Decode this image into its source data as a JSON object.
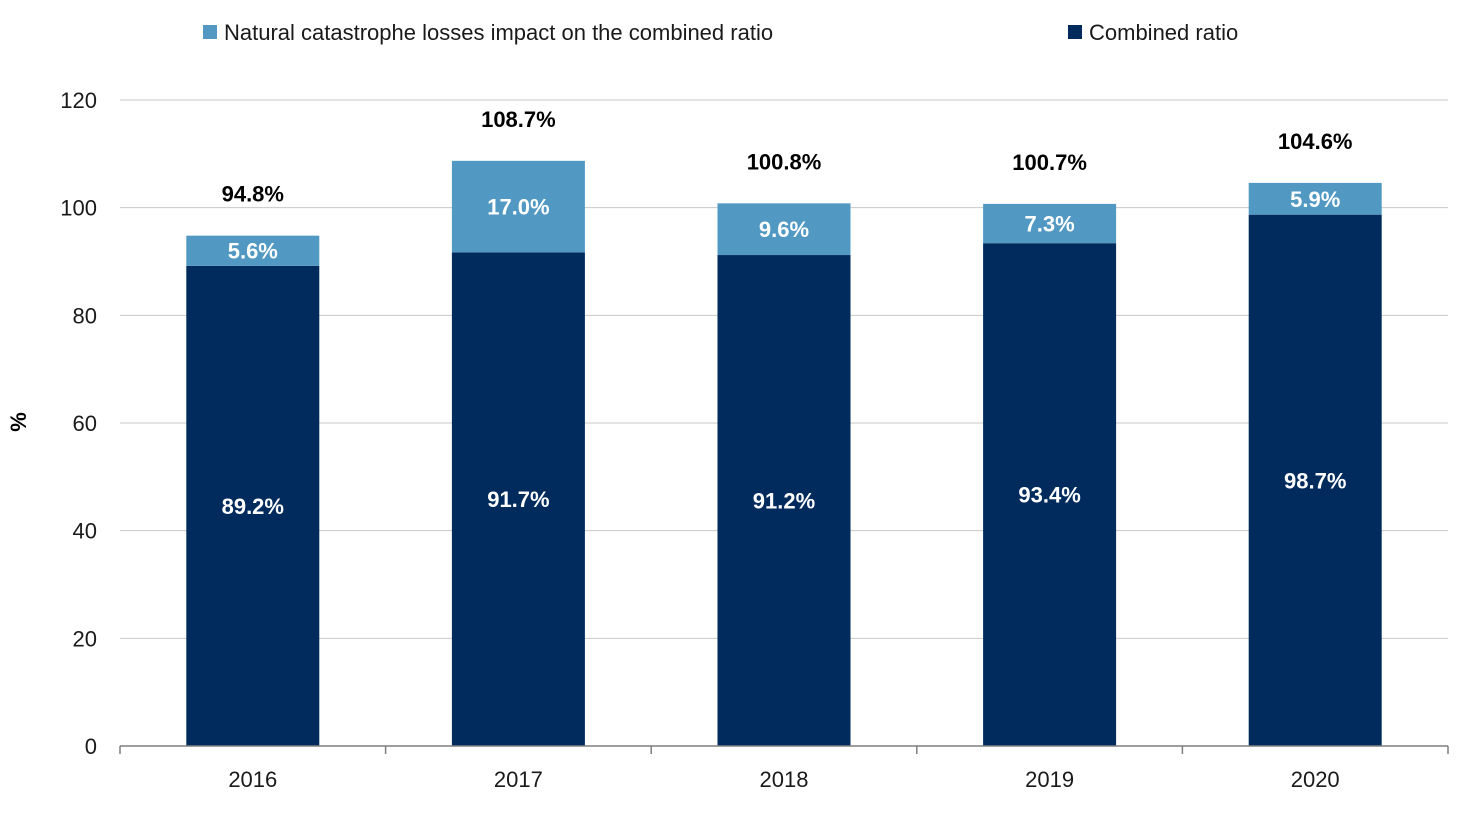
{
  "chart_data": {
    "type": "bar",
    "stacked": true,
    "ylabel": "%",
    "xlabel": "",
    "ylim": [
      0,
      120
    ],
    "yticks": [
      "0",
      "20",
      "40",
      "60",
      "80",
      "100",
      "120"
    ],
    "grid": true,
    "legend_position": "top",
    "categories": [
      "2016",
      "2017",
      "2018",
      "2019",
      "2020"
    ],
    "series": [
      {
        "name": "Combined ratio",
        "color": "#002b5c",
        "values": [
          89.2,
          91.7,
          91.2,
          93.4,
          98.7
        ],
        "labels": [
          "89.2%",
          "91.7%",
          "91.2%",
          "93.4%",
          "98.7%"
        ]
      },
      {
        "name": "Natural catastrophe losses impact on the combined ratio",
        "color": "#5199c3",
        "values": [
          5.6,
          17.0,
          9.6,
          7.3,
          5.9
        ],
        "labels": [
          "5.6%",
          "17.0%",
          "9.6%",
          "7.3%",
          "5.9%"
        ]
      }
    ],
    "totals": [
      94.8,
      108.7,
      100.8,
      100.7,
      104.6
    ],
    "total_labels": [
      "94.8%",
      "108.7%",
      "100.8%",
      "100.7%",
      "104.6%"
    ]
  },
  "legend": {
    "items": [
      {
        "label": "Natural catastrophe losses impact on the combined ratio",
        "color": "#5199c3"
      },
      {
        "label": "Combined ratio",
        "color": "#002b5c"
      }
    ]
  },
  "colors": {
    "grid": "#c8c8c8",
    "axis": "#7f7f7f"
  }
}
